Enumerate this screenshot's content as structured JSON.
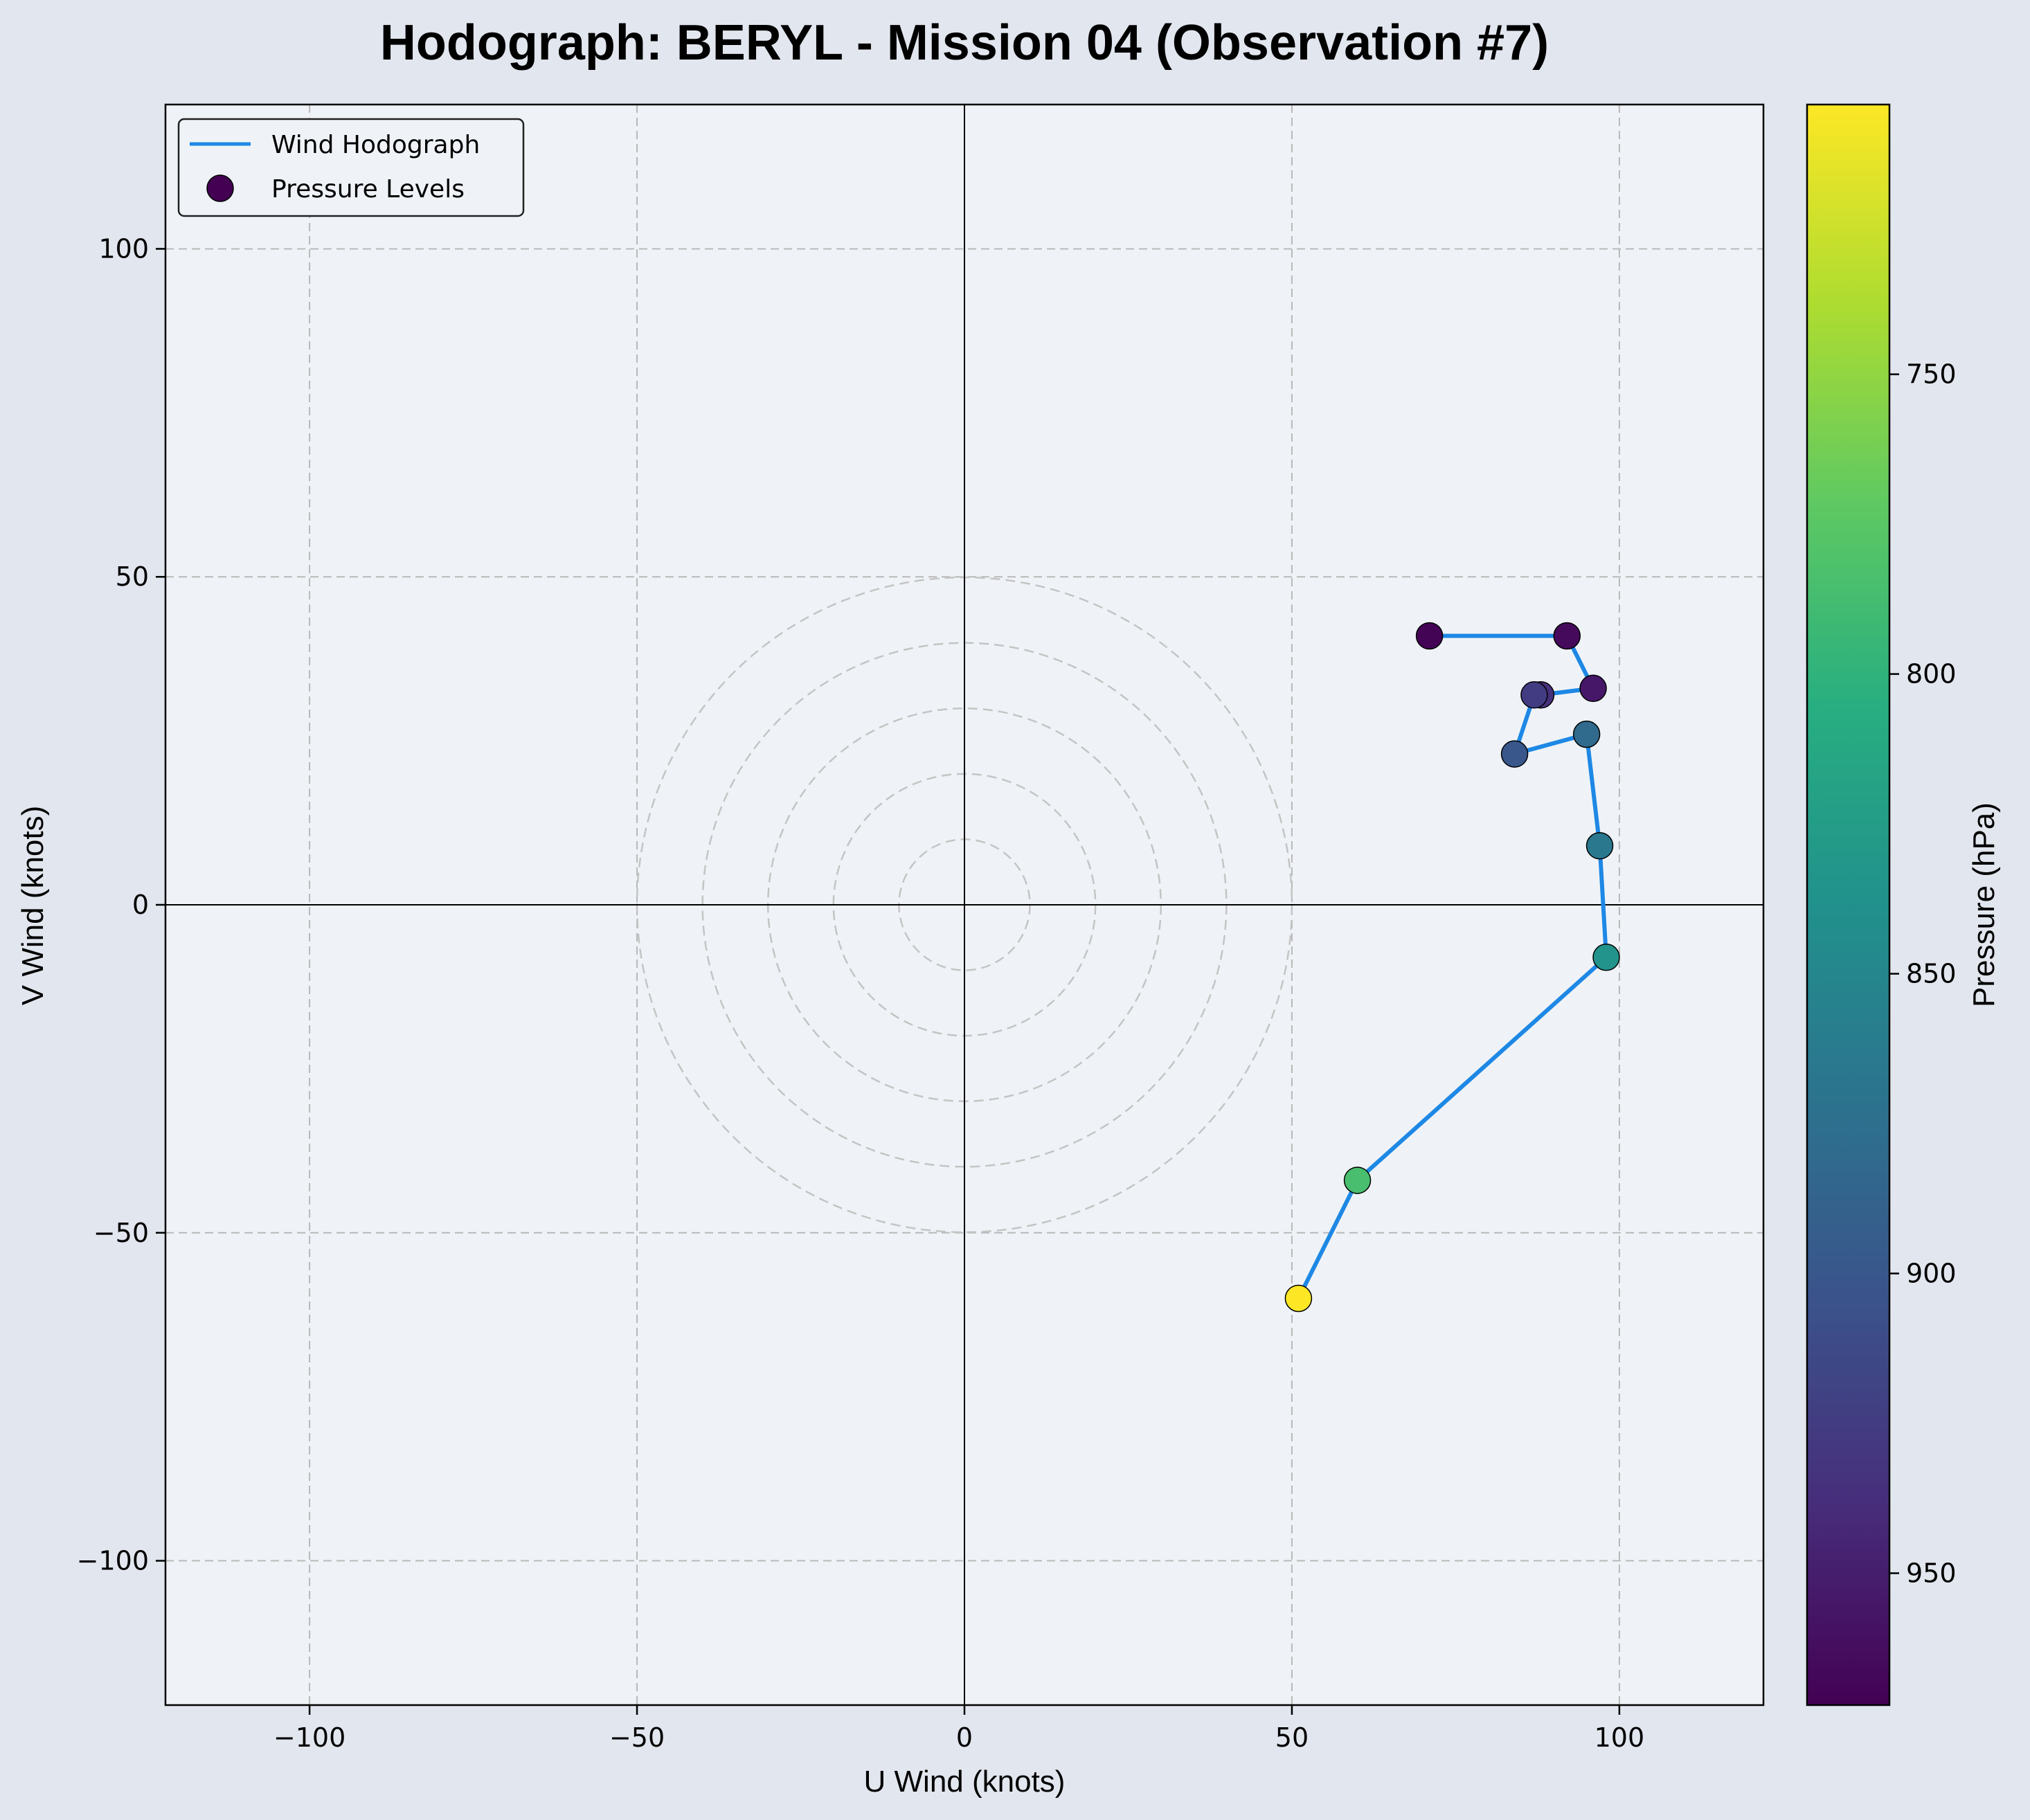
{
  "chart_data": {
    "type": "scatter",
    "title": "Hodograph: BERYL - Mission 04 (Observation #7)",
    "xlabel": "U Wind (knots)",
    "ylabel": "V Wind (knots)",
    "xlim": [
      -122,
      122
    ],
    "ylim": [
      -122,
      122
    ],
    "xticks": [
      -100,
      -50,
      0,
      50,
      100
    ],
    "yticks": [
      -100,
      -50,
      0,
      50,
      100
    ],
    "xtick_labels": [
      "−100",
      "−50",
      "0",
      "50",
      "100"
    ],
    "ytick_labels": [
      "−100",
      "−50",
      "0",
      "50",
      "100"
    ],
    "grid": true,
    "range_rings": [
      10,
      20,
      30,
      40,
      50
    ],
    "legend": {
      "position": "top-left",
      "entries": [
        "Wind Hodograph",
        "Pressure Levels"
      ]
    },
    "line_color": "#1e88e5",
    "series": [
      {
        "name": "Wind Hodograph",
        "points": [
          {
            "u": 71,
            "v": 41,
            "p": 970
          },
          {
            "u": 92,
            "v": 41,
            "p": 965
          },
          {
            "u": 96,
            "v": 33,
            "p": 955
          },
          {
            "u": 88,
            "v": 32,
            "p": 935
          },
          {
            "u": 87,
            "v": 32,
            "p": 925
          },
          {
            "u": 84,
            "v": 23,
            "p": 900
          },
          {
            "u": 95,
            "v": 26,
            "p": 880
          },
          {
            "u": 97,
            "v": 9,
            "p": 865
          },
          {
            "u": 98,
            "v": -8,
            "p": 835
          },
          {
            "u": 60,
            "v": -42,
            "p": 785
          },
          {
            "u": 51,
            "v": -60,
            "p": 705
          }
        ]
      }
    ],
    "colorbar": {
      "label": "Pressure (hPa)",
      "colormap": "viridis",
      "reversed": true,
      "range": [
        705,
        972
      ],
      "ticks": [
        750,
        800,
        850,
        900,
        950
      ],
      "tick_labels": [
        "750",
        "800",
        "850",
        "900",
        "950"
      ]
    }
  }
}
